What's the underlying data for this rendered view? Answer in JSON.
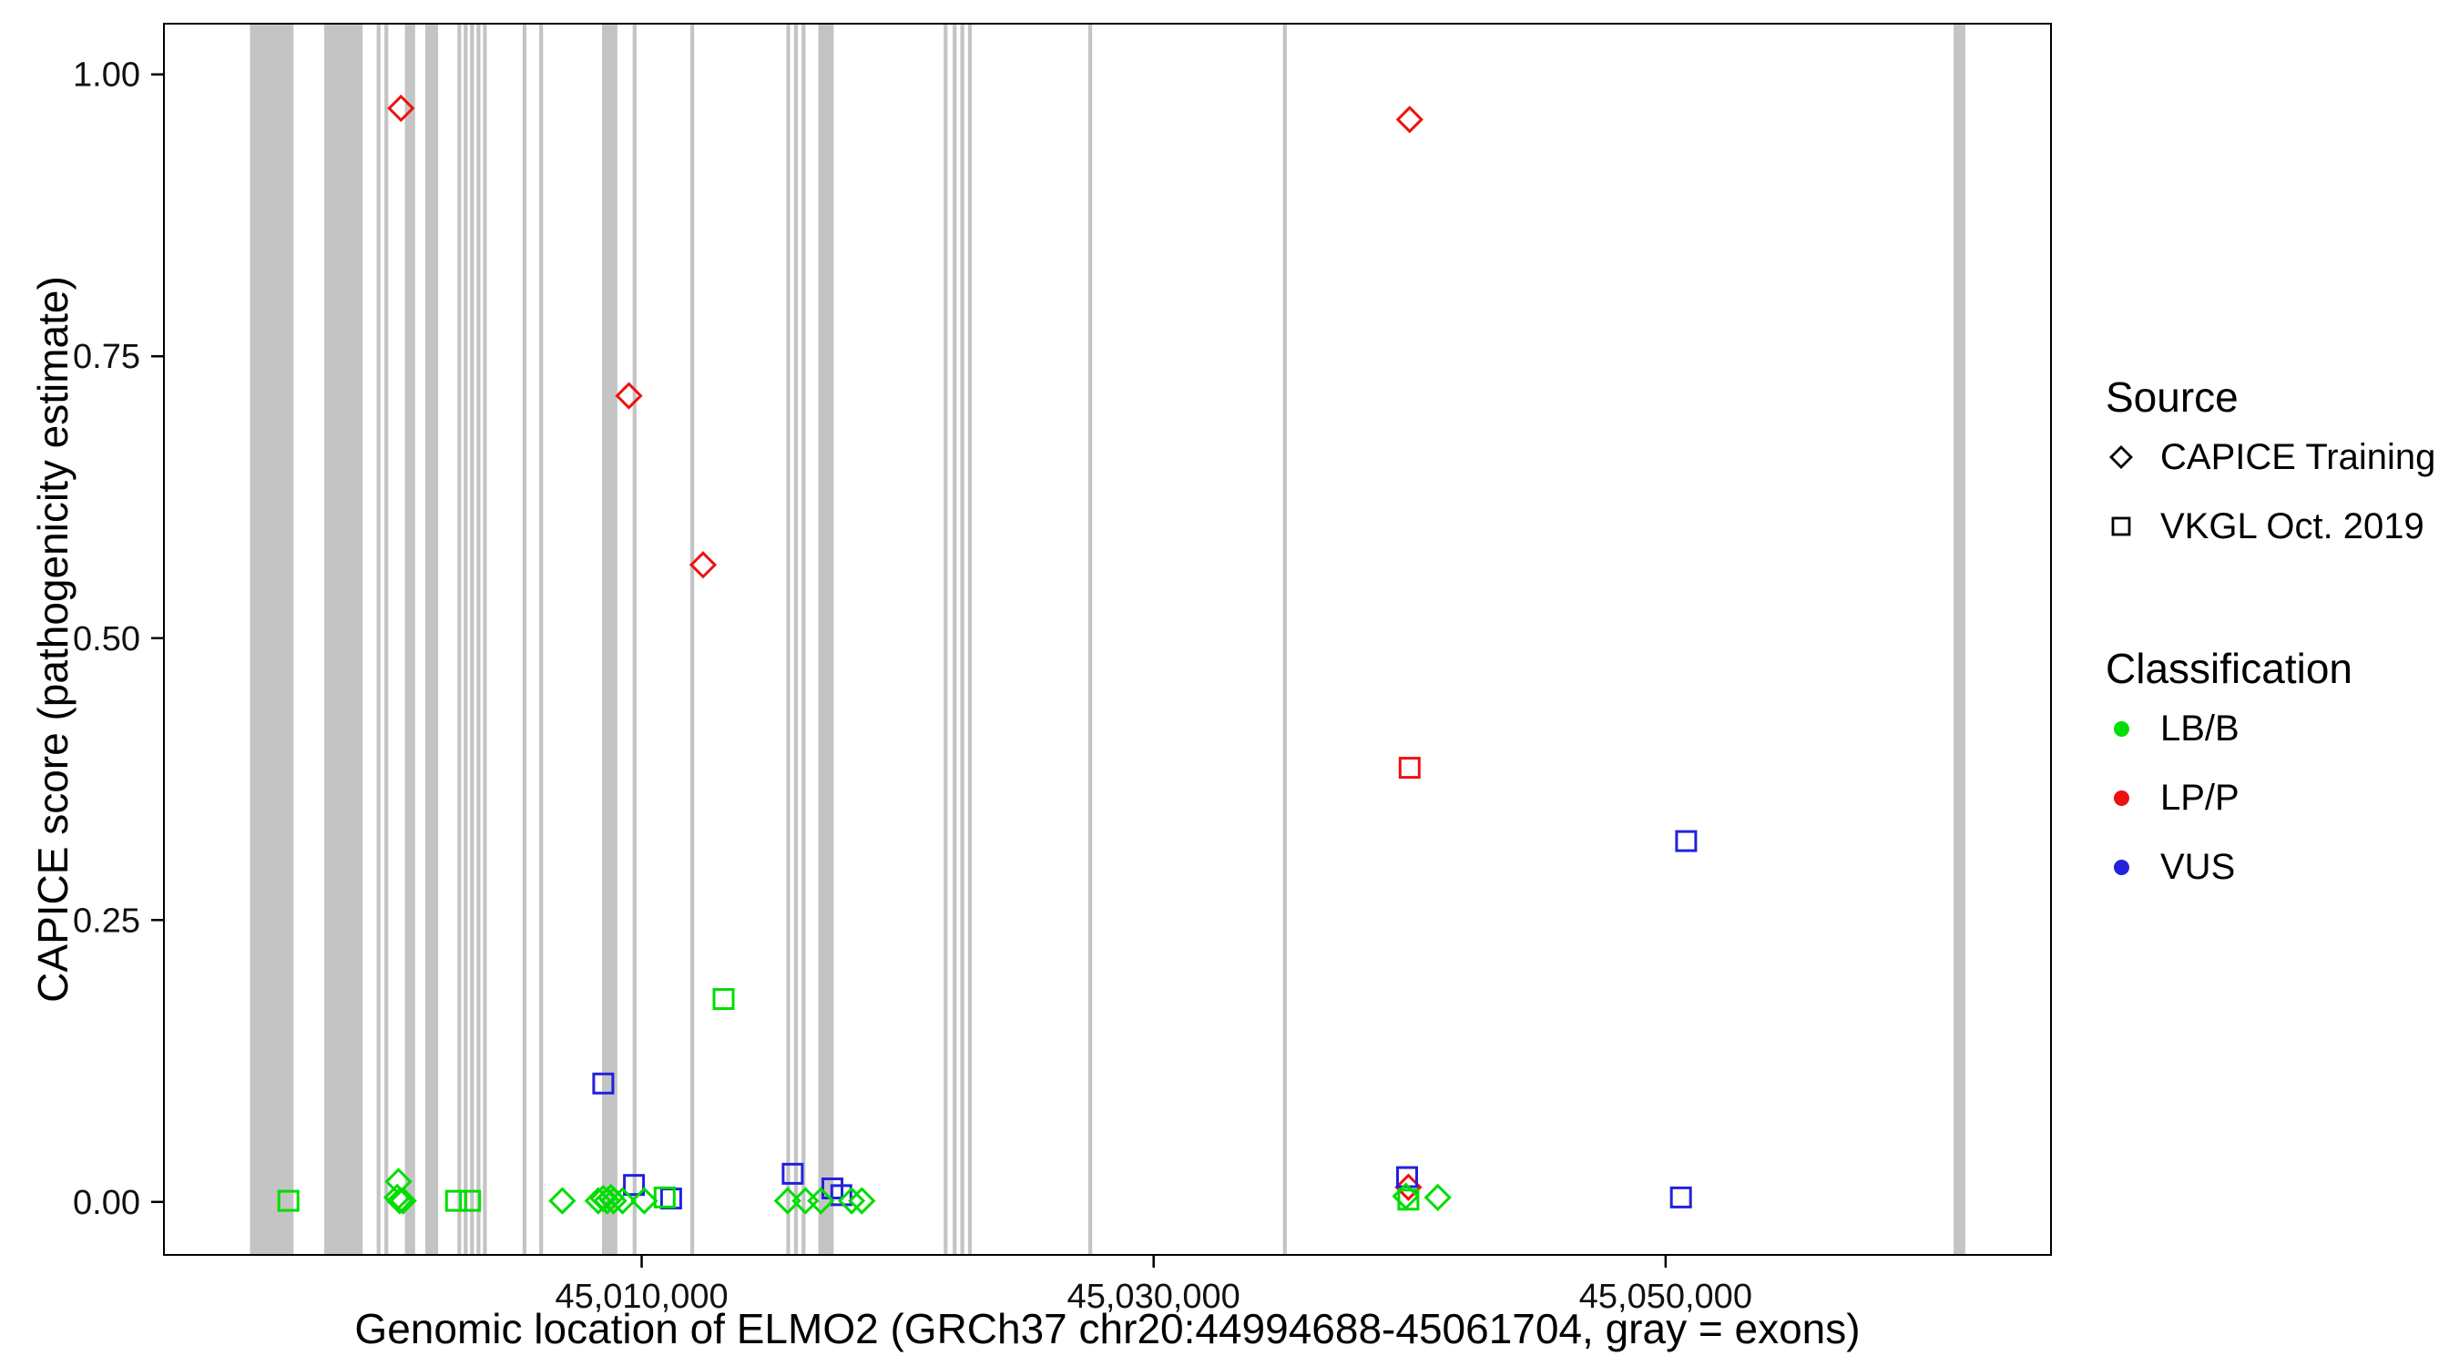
{
  "legend": {
    "source": {
      "title": "Source",
      "items": [
        {
          "label": "CAPICE Training",
          "shape": "diamond"
        },
        {
          "label": "VKGL Oct. 2019",
          "shape": "square"
        }
      ]
    },
    "classification": {
      "title": "Classification",
      "items": [
        {
          "label": "LB/B",
          "color": "#00dd00"
        },
        {
          "label": "LP/P",
          "color": "#ee1111"
        },
        {
          "label": "VUS",
          "color": "#2222dd"
        }
      ]
    }
  },
  "chart_data": {
    "type": "scatter",
    "title": "",
    "xlabel": "Genomic location of ELMO2 (GRCh37 chr20:44994688-45061704, gray = exons)",
    "ylabel": "CAPICE score (pathogenicity estimate)",
    "x_domain": [
      44991338,
      45065054
    ],
    "y_domain": [
      -0.047,
      1.045
    ],
    "x_ticks": [
      {
        "value": 45010000,
        "label": "45,010,000"
      },
      {
        "value": 45030000,
        "label": "45,030,000"
      },
      {
        "value": 45050000,
        "label": "45,050,000"
      }
    ],
    "y_ticks": [
      {
        "value": 0.0,
        "label": "0.00"
      },
      {
        "value": 0.25,
        "label": "0.25"
      },
      {
        "value": 0.5,
        "label": "0.50"
      },
      {
        "value": 0.75,
        "label": "0.75"
      },
      {
        "value": 1.0,
        "label": "1.00"
      }
    ],
    "exon_color": "#c4c4c4",
    "exons": [
      [
        44994700,
        44996400
      ],
      [
        44997600,
        44999100
      ],
      [
        44999650,
        44999800
      ],
      [
        44999950,
        45000100
      ],
      [
        45000750,
        45001150
      ],
      [
        45001550,
        45002050
      ],
      [
        45002800,
        45002950
      ],
      [
        45003050,
        45003200
      ],
      [
        45003300,
        45003450
      ],
      [
        45003550,
        45003700
      ],
      [
        45003800,
        45003950
      ],
      [
        45005350,
        45005500
      ],
      [
        45006000,
        45006150
      ],
      [
        45008450,
        45009050
      ],
      [
        45009650,
        45009800
      ],
      [
        45011900,
        45012050
      ],
      [
        45015650,
        45015800
      ],
      [
        45015950,
        45016100
      ],
      [
        45016250,
        45016400
      ],
      [
        45016900,
        45017500
      ],
      [
        45021800,
        45021950
      ],
      [
        45022150,
        45022300
      ],
      [
        45022450,
        45022600
      ],
      [
        45022750,
        45022900
      ],
      [
        45027450,
        45027600
      ],
      [
        45035050,
        45035200
      ],
      [
        45061250,
        45061704
      ]
    ],
    "points": [
      {
        "x": 45000600,
        "y": 0.97,
        "source": "CAPICE Training",
        "classification": "LP/P"
      },
      {
        "x": 45009500,
        "y": 0.715,
        "source": "CAPICE Training",
        "classification": "LP/P"
      },
      {
        "x": 45012400,
        "y": 0.565,
        "source": "CAPICE Training",
        "classification": "LP/P"
      },
      {
        "x": 45040000,
        "y": 0.96,
        "source": "CAPICE Training",
        "classification": "LP/P"
      },
      {
        "x": 45039950,
        "y": 0.013,
        "source": "CAPICE Training",
        "classification": "LP/P"
      },
      {
        "x": 45040000,
        "y": 0.385,
        "source": "VKGL Oct. 2019",
        "classification": "LP/P"
      },
      {
        "x": 45008500,
        "y": 0.105,
        "source": "VKGL Oct. 2019",
        "classification": "VUS"
      },
      {
        "x": 45009700,
        "y": 0.015,
        "source": "VKGL Oct. 2019",
        "classification": "VUS"
      },
      {
        "x": 45011150,
        "y": 0.003,
        "source": "VKGL Oct. 2019",
        "classification": "VUS"
      },
      {
        "x": 45015900,
        "y": 0.025,
        "source": "VKGL Oct. 2019",
        "classification": "VUS"
      },
      {
        "x": 45017450,
        "y": 0.012,
        "source": "VKGL Oct. 2019",
        "classification": "VUS"
      },
      {
        "x": 45017800,
        "y": 0.006,
        "source": "VKGL Oct. 2019",
        "classification": "VUS"
      },
      {
        "x": 45039900,
        "y": 0.022,
        "source": "VKGL Oct. 2019",
        "classification": "VUS"
      },
      {
        "x": 45050800,
        "y": 0.32,
        "source": "VKGL Oct. 2019",
        "classification": "VUS"
      },
      {
        "x": 45050600,
        "y": 0.004,
        "source": "VKGL Oct. 2019",
        "classification": "VUS"
      },
      {
        "x": 44996200,
        "y": 0.001,
        "source": "VKGL Oct. 2019",
        "classification": "LB/B"
      },
      {
        "x": 45002750,
        "y": 0.001,
        "source": "VKGL Oct. 2019",
        "classification": "LB/B"
      },
      {
        "x": 45003300,
        "y": 0.001,
        "source": "VKGL Oct. 2019",
        "classification": "LB/B"
      },
      {
        "x": 45010900,
        "y": 0.004,
        "source": "VKGL Oct. 2019",
        "classification": "LB/B"
      },
      {
        "x": 45013200,
        "y": 0.18,
        "source": "VKGL Oct. 2019",
        "classification": "LB/B"
      },
      {
        "x": 45039950,
        "y": 0.002,
        "source": "VKGL Oct. 2019",
        "classification": "LB/B"
      },
      {
        "x": 45000500,
        "y": 0.018,
        "source": "CAPICE Training",
        "classification": "LB/B"
      },
      {
        "x": 45000450,
        "y": 0.004,
        "source": "CAPICE Training",
        "classification": "LB/B"
      },
      {
        "x": 45000550,
        "y": 0.001,
        "source": "CAPICE Training",
        "classification": "LB/B"
      },
      {
        "x": 45000680,
        "y": 0.001,
        "source": "CAPICE Training",
        "classification": "LB/B"
      },
      {
        "x": 45006900,
        "y": 0.001,
        "source": "CAPICE Training",
        "classification": "LB/B"
      },
      {
        "x": 45008300,
        "y": 0.001,
        "source": "CAPICE Training",
        "classification": "LB/B"
      },
      {
        "x": 45008500,
        "y": 0.003,
        "source": "CAPICE Training",
        "classification": "LB/B"
      },
      {
        "x": 45008650,
        "y": 0.001,
        "source": "CAPICE Training",
        "classification": "LB/B"
      },
      {
        "x": 45008800,
        "y": 0.004,
        "source": "CAPICE Training",
        "classification": "LB/B"
      },
      {
        "x": 45008900,
        "y": 0.001,
        "source": "CAPICE Training",
        "classification": "LB/B"
      },
      {
        "x": 45009250,
        "y": 0.001,
        "source": "CAPICE Training",
        "classification": "LB/B"
      },
      {
        "x": 45010100,
        "y": 0.001,
        "source": "CAPICE Training",
        "classification": "LB/B"
      },
      {
        "x": 45015700,
        "y": 0.001,
        "source": "CAPICE Training",
        "classification": "LB/B"
      },
      {
        "x": 45016400,
        "y": 0.001,
        "source": "CAPICE Training",
        "classification": "LB/B"
      },
      {
        "x": 45017000,
        "y": 0.001,
        "source": "CAPICE Training",
        "classification": "LB/B"
      },
      {
        "x": 45018200,
        "y": 0.001,
        "source": "CAPICE Training",
        "classification": "LB/B"
      },
      {
        "x": 45018600,
        "y": 0.001,
        "source": "CAPICE Training",
        "classification": "LB/B"
      },
      {
        "x": 45039850,
        "y": 0.005,
        "source": "CAPICE Training",
        "classification": "LB/B"
      },
      {
        "x": 45041100,
        "y": 0.004,
        "source": "CAPICE Training",
        "classification": "LB/B"
      }
    ]
  }
}
